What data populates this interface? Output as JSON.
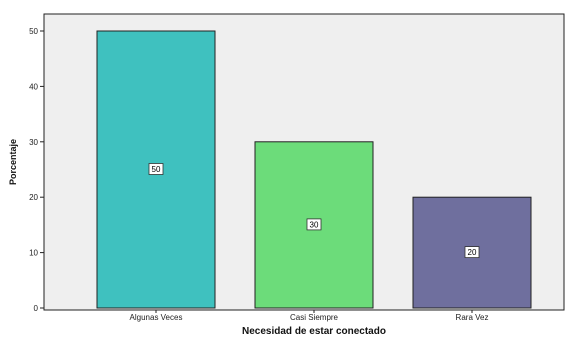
{
  "chart_data": {
    "type": "bar",
    "categories": [
      "Algunas Veces",
      "Casi Siempre",
      "Rara Vez"
    ],
    "values": [
      50,
      30,
      20
    ],
    "data_labels": [
      "50",
      "30",
      "20"
    ],
    "colors": [
      "#3fc1bf",
      "#6cdc7a",
      "#6f6f9e"
    ],
    "plot_background": "#efefef",
    "title": "",
    "xlabel": "Necesidad de estar conectado",
    "ylabel": "Porcentaje",
    "ylim": [
      0,
      50
    ],
    "yticks": [
      "0",
      "10",
      "20",
      "30",
      "40",
      "50"
    ],
    "grid": false,
    "legend": "none"
  }
}
